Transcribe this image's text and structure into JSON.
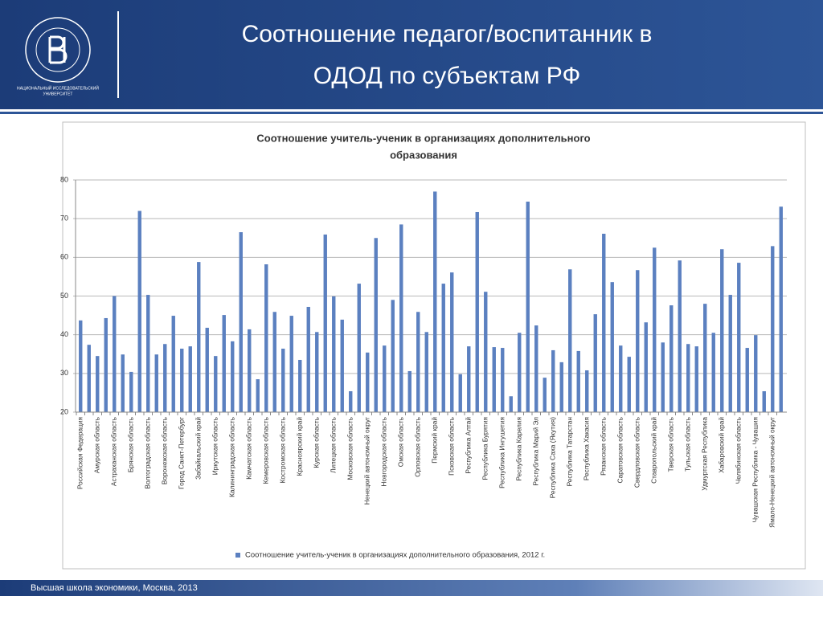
{
  "header": {
    "title": [
      "Соотношение педагог/воспитанник в",
      "ОДОД по субъектам РФ"
    ],
    "logo_caption": [
      "НАЦИОНАЛЬНЫЙ ИССЛЕДОВАТЕЛЬСКИЙ",
      "УНИВЕРСИТЕТ"
    ]
  },
  "footer": {
    "text": "Высшая школа экономики, Москва, 2013"
  },
  "chart_data": {
    "type": "bar",
    "title": [
      "Соотношение учитель-ученик в организациях дополнительного",
      "образования"
    ],
    "categories": [
      "Российская Федерация",
      null,
      "Амурская область",
      null,
      "Астраханская область",
      null,
      "Брянская область",
      null,
      "Волгоградская область",
      null,
      "Воронежская область",
      null,
      "Город Санкт-Петербург",
      null,
      "Забайкальский край",
      null,
      "Иркутская область",
      null,
      "Калининградская область",
      null,
      "Камчатская область",
      null,
      "Кемеровская область",
      null,
      "Костромская область",
      null,
      "Красноярский край",
      null,
      "Курская область",
      null,
      "Липецкая область",
      null,
      "Московская область",
      null,
      "Ненецкий автономный округ",
      null,
      "Новгородская область",
      null,
      "Омская область",
      null,
      "Орловская область",
      null,
      "Пермский край",
      null,
      "Псковская область",
      null,
      "Республика Алтай",
      null,
      "Республика Бурятия",
      null,
      "Республика Ингушетия",
      null,
      "Республика Карелия",
      null,
      "Республика Марий Эл",
      null,
      "Республика Саха (Якутия)",
      null,
      "Республика Татарстан",
      null,
      "Республика Хакасия",
      null,
      "Рязанская область",
      null,
      "Саратовская область",
      null,
      "Свердловская область",
      null,
      "Ставропольский край",
      null,
      "Тверская область",
      null,
      "Тульская область",
      null,
      "Удмуртская Республика",
      null,
      "Хабаровский край",
      null,
      "Челябинская область",
      null,
      "Чувашская Республика - Чувашия",
      null,
      "Ямало-Ненецкий автономный округ",
      null
    ],
    "series": [
      {
        "name": "Соотношение учитель-ученик в организациях дополнительного образования, 2012 г.",
        "color": "#5b80c0",
        "values": [
          43.7,
          37.4,
          34.5,
          44.3,
          50,
          34.9,
          30.4,
          72,
          50.3,
          34.9,
          37.6,
          44.9,
          36.4,
          37,
          58.8,
          41.8,
          34.5,
          45.1,
          38.3,
          66.5,
          41.4,
          28.5,
          58.2,
          45.9,
          36.4,
          44.9,
          33.5,
          47.2,
          40.7,
          65.9,
          49.9,
          43.9,
          25.4,
          53.2,
          35.4,
          65,
          37.2,
          49,
          68.5,
          30.6,
          45.9,
          40.7,
          77,
          53.2,
          56.1,
          29.8,
          37,
          71.7,
          51.1,
          36.8,
          36.6,
          24.1,
          40.5,
          74.4,
          42.4,
          28.9,
          36,
          32.9,
          56.9,
          35.8,
          30.8,
          45.3,
          66.1,
          53.6,
          37.2,
          34.3,
          56.7,
          43.2,
          62.5,
          38,
          47.6,
          59.2,
          37.6,
          37,
          48,
          40.5,
          62.1,
          50.3,
          58.6,
          36.6,
          39.9,
          25.4,
          62.9,
          73.1
        ]
      }
    ],
    "ylim": [
      20,
      80
    ],
    "yticks": [
      20,
      30,
      40,
      50,
      60,
      70,
      80
    ],
    "grid": true,
    "legend": "bottom"
  }
}
